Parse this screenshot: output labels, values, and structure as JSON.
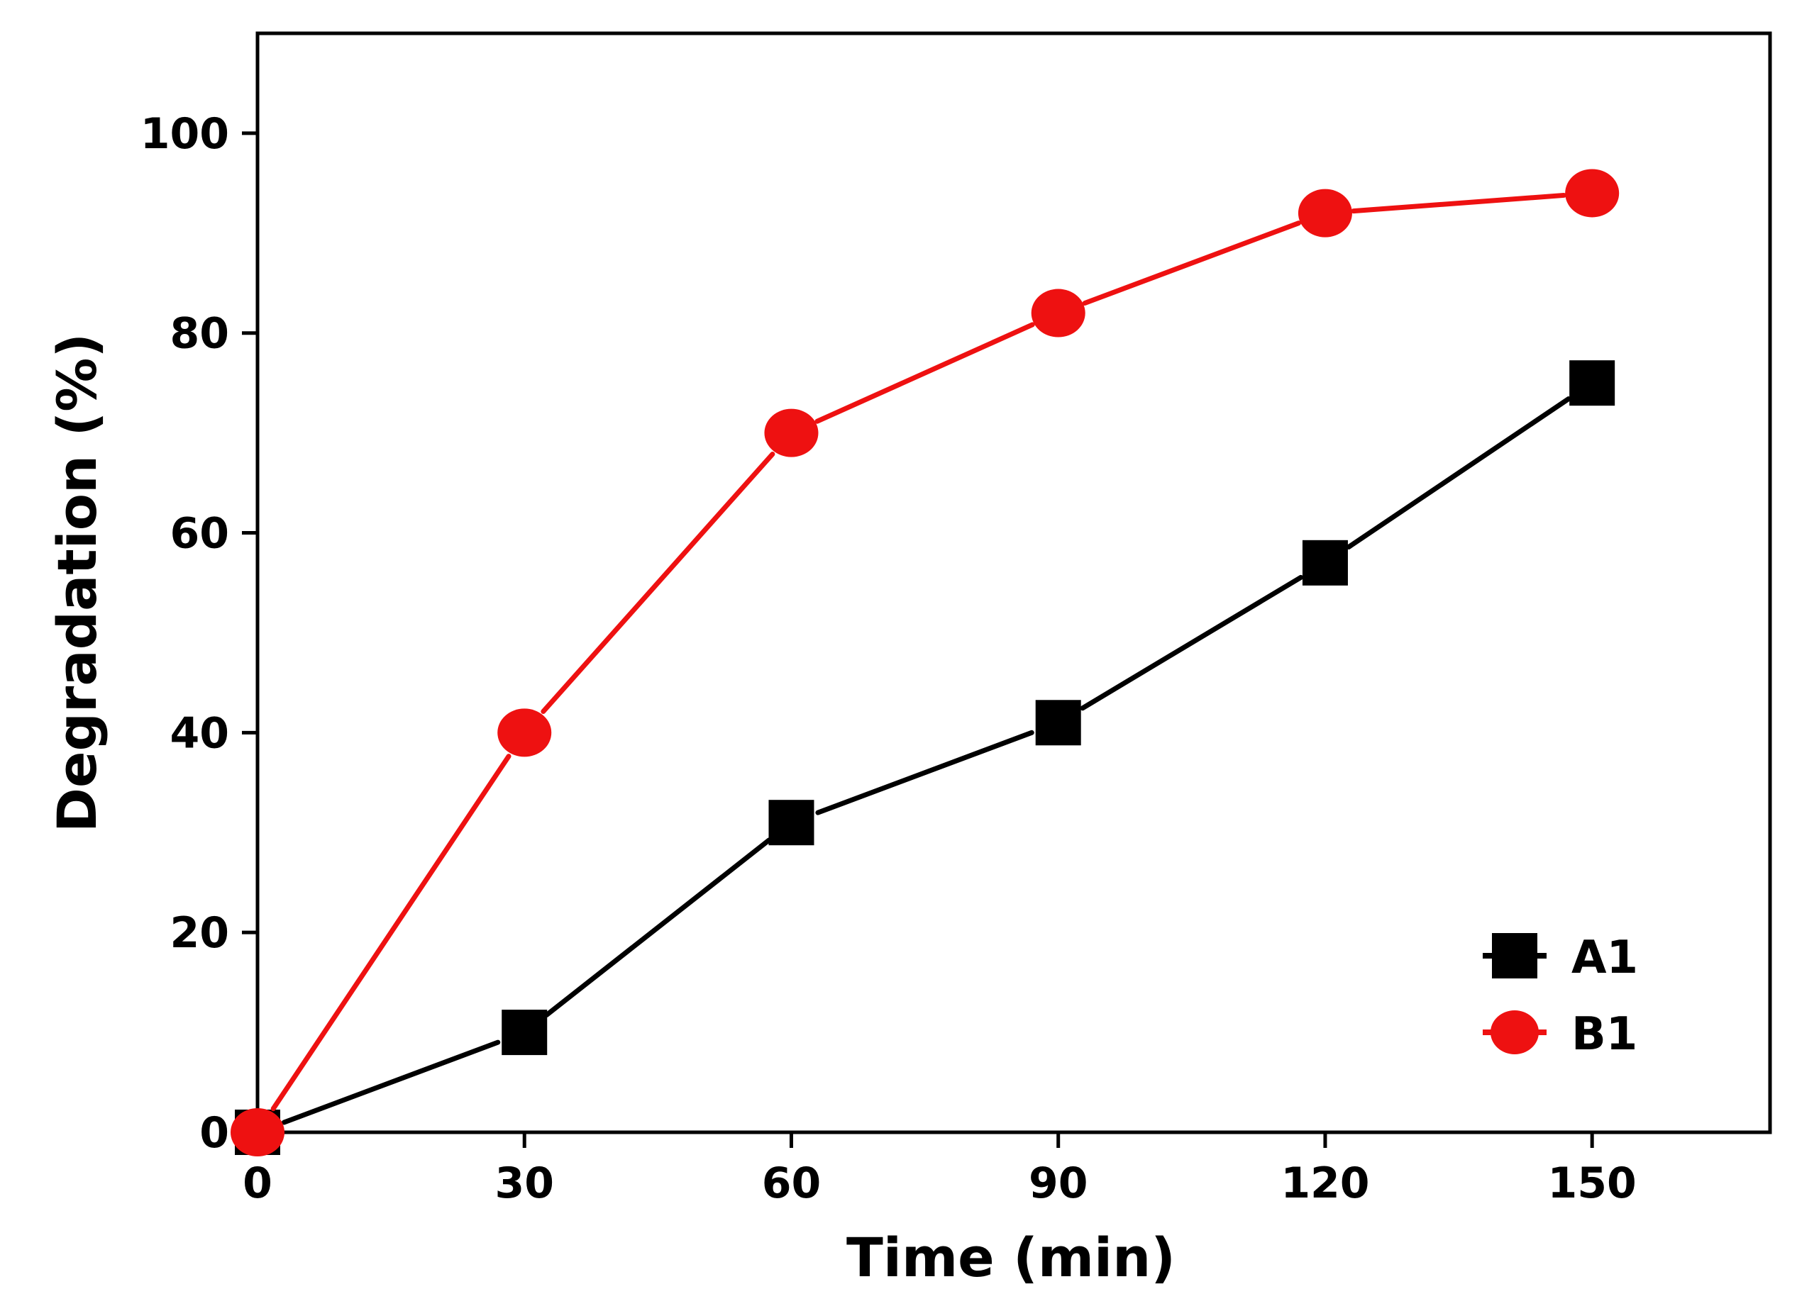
{
  "chart_data": {
    "type": "line",
    "title": "",
    "xlabel": "Time (min)",
    "ylabel": "Degradation (%)",
    "xlim": [
      0,
      170
    ],
    "ylim": [
      0,
      110
    ],
    "xticks": [
      0,
      30,
      60,
      90,
      120,
      150
    ],
    "yticks": [
      0,
      20,
      40,
      60,
      80,
      100
    ],
    "x": [
      0,
      30,
      60,
      90,
      120,
      150
    ],
    "grid": false,
    "legend_position": "bottom-right",
    "series": [
      {
        "name": "A1",
        "marker": "square",
        "color": "#000000",
        "values": [
          0,
          10,
          31,
          41,
          57,
          75
        ]
      },
      {
        "name": "B1",
        "marker": "circle",
        "color": "#ee1111",
        "values": [
          0,
          40,
          70,
          82,
          92,
          94
        ]
      }
    ]
  }
}
